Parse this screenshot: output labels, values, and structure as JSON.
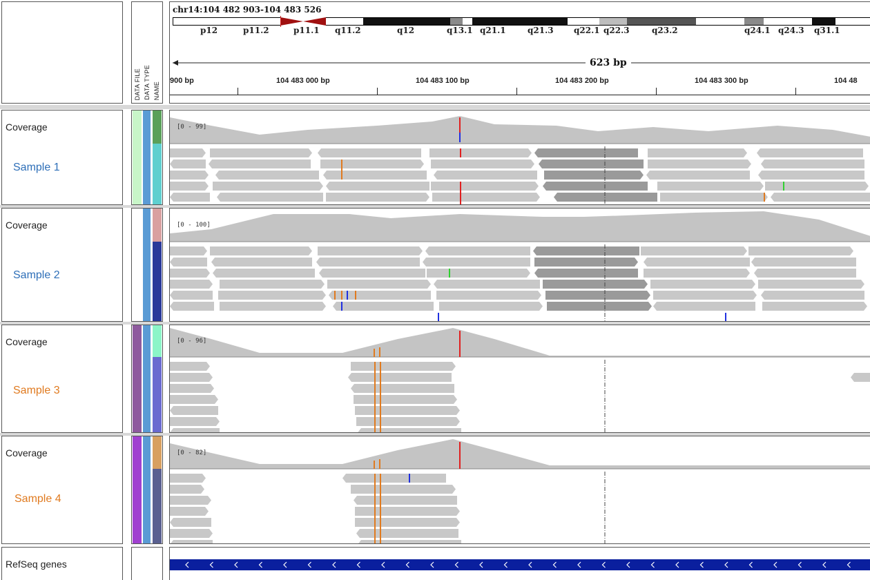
{
  "locus": "chr14:104 482 903-104 483 526",
  "span_label": "623 bp",
  "attribute_headers": [
    "DATA FILE",
    "DATA TYPE",
    "NAME"
  ],
  "ideogram_bands": [
    {
      "label": "p12",
      "stain": "white"
    },
    {
      "label": "p11.2",
      "stain": "white"
    },
    {
      "label": "p11.1",
      "stain": "acen"
    },
    {
      "label": "q11.2",
      "stain": "white"
    },
    {
      "label": "q12",
      "stain": "black"
    },
    {
      "label": "q13.1",
      "stain": "gray"
    },
    {
      "label": "q21.1",
      "stain": "black"
    },
    {
      "label": "q21.3",
      "stain": "black"
    },
    {
      "label": "q22.1",
      "stain": "white"
    },
    {
      "label": "q22.3",
      "stain": "lightgray"
    },
    {
      "label": "q23.2",
      "stain": "darkgray"
    },
    {
      "label": "q24.1",
      "stain": "gray"
    },
    {
      "label": "q24.3",
      "stain": "white"
    },
    {
      "label": "q31.1",
      "stain": "black"
    }
  ],
  "ruler_labels": [
    "900 bp",
    "104 483 000 bp",
    "104 483 100 bp",
    "104 483 200 bp",
    "104 483 300 bp",
    "104 48"
  ],
  "tracks": [
    {
      "coverage_label": "Coverage",
      "sample": "Sample 1",
      "range": "[0 - 99]",
      "sample_color": "#2e6fb8",
      "attr_colors": [
        "#c8f5c8",
        "#5a9bd5",
        "#5aa05a",
        "#5fcfcf"
      ]
    },
    {
      "coverage_label": "Coverage",
      "sample": "Sample 2",
      "range": "[0 - 100]",
      "sample_color": "#2e6fb8",
      "attr_colors": [
        "#ffffff",
        "#5a9bd5",
        "#d9a0a0",
        "#2a3a9a"
      ]
    },
    {
      "coverage_label": "Coverage",
      "sample": "Sample 3",
      "range": "[0 - 96]",
      "sample_color": "#e07a1f",
      "attr_colors": [
        "#8e5a9e",
        "#5a9bd5",
        "#8cf5c8",
        "#6a6ad0"
      ]
    },
    {
      "coverage_label": "Coverage",
      "sample": "Sample 4",
      "range": "[0 - 82]",
      "sample_color": "#e07a1f",
      "attr_colors": [
        "#a040d0",
        "#5a9bd5",
        "#d8a060",
        "#5a6090"
      ]
    }
  ],
  "refseq_label": "RefSeq genes",
  "colors": {
    "read": "#c8c8c8",
    "read_dark": "#9a9a9a",
    "coverage": "#c4c4c4",
    "gene": "#0a1f9e",
    "mismatch_red": "#e02020",
    "mismatch_blue": "#2030e0",
    "mismatch_orange": "#e07a1f",
    "mismatch_green": "#30d030"
  }
}
